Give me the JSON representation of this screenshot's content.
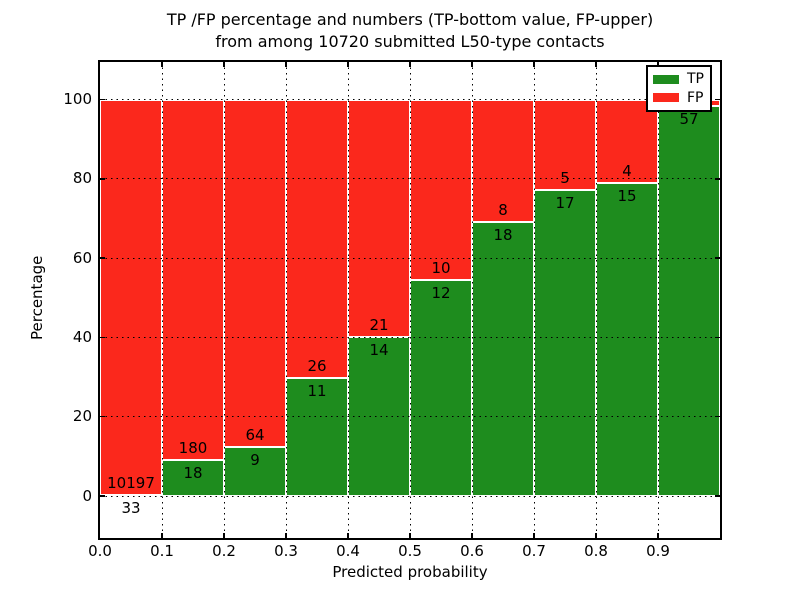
{
  "figure": {
    "title_line1": "TP /FP percentage and numbers (TP-bottom value, FP-upper)",
    "title_line2": "from among 10720 submitted L50-type contacts",
    "xlabel": "Predicted probability",
    "ylabel": "Percentage"
  },
  "legend": {
    "items": [
      {
        "label": "TP",
        "color": "#1e8c1e"
      },
      {
        "label": "FP",
        "color": "#fb281c"
      }
    ]
  },
  "chart_data": {
    "type": "bar",
    "stacked": true,
    "normalized_to_percent": true,
    "title": "TP /FP percentage and numbers (TP-bottom value, FP-upper) from among 10720 submitted L50-type contacts",
    "xlabel": "Predicted probability",
    "ylabel": "Percentage",
    "total_submitted": 10720,
    "bin_width": 0.1,
    "categories": [
      "0.0-0.1",
      "0.1-0.2",
      "0.2-0.3",
      "0.3-0.4",
      "0.4-0.5",
      "0.5-0.6",
      "0.6-0.7",
      "0.7-0.8",
      "0.8-0.9",
      "0.9-1.0"
    ],
    "series": [
      {
        "name": "TP",
        "color": "#1e8c1e",
        "values": [
          33,
          18,
          9,
          11,
          14,
          12,
          18,
          17,
          15,
          57
        ]
      },
      {
        "name": "FP",
        "color": "#fb281c",
        "values": [
          10197,
          180,
          64,
          26,
          21,
          10,
          8,
          5,
          4,
          1
        ]
      }
    ],
    "tp_percent": [
      0.32,
      9.09,
      12.33,
      29.73,
      40.0,
      54.55,
      69.23,
      77.27,
      78.95,
      98.28
    ],
    "fp_label_hidden_by_legend_for_last_bin": true,
    "x_tick_labels": [
      "0.0",
      "0.1",
      "0.2",
      "0.3",
      "0.4",
      "0.5",
      "0.6",
      "0.7",
      "0.8",
      "0.9"
    ],
    "y_ticks": [
      0,
      20,
      40,
      60,
      80,
      100
    ],
    "y_tick_labels": [
      "0",
      "20",
      "40",
      "60",
      "80",
      "100"
    ],
    "xlim": [
      0.0,
      1.0
    ],
    "ylim": [
      -10.6,
      109.6
    ],
    "grid": "dotted black, on top of bars",
    "bar_edge_color": "#ffffff",
    "legend_position": "upper right",
    "legend_labels": [
      "TP",
      "FP"
    ]
  }
}
